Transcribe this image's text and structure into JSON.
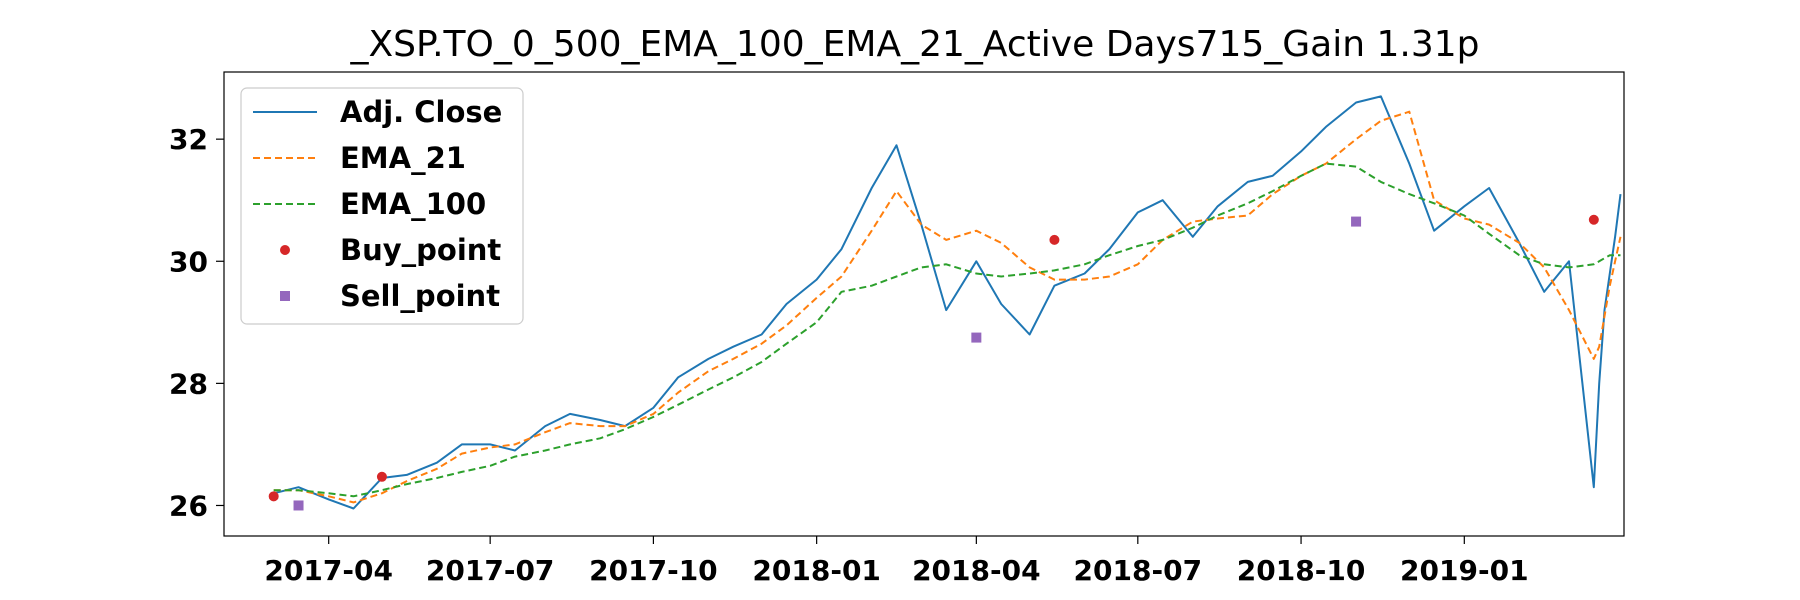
{
  "chart_data": {
    "type": "line",
    "title": "_XSP.TO_0_500_EMA_100_EMA_21_Active Days715_Gain   1.31p",
    "xlabel": "",
    "ylabel": "",
    "x_range": [
      "2017-02-01",
      "2019-04-01"
    ],
    "ylim": [
      25.5,
      33.1
    ],
    "grid": false,
    "legend_position": "top-left",
    "x_ticks": [
      "2017-04",
      "2017-07",
      "2017-10",
      "2018-01",
      "2018-04",
      "2018-07",
      "2018-10",
      "2019-01"
    ],
    "y_ticks": [
      26,
      28,
      30,
      32
    ],
    "x": [
      "2017-03-01",
      "2017-03-15",
      "2017-04-01",
      "2017-04-15",
      "2017-05-01",
      "2017-05-15",
      "2017-06-01",
      "2017-06-15",
      "2017-07-01",
      "2017-07-15",
      "2017-08-01",
      "2017-08-15",
      "2017-09-01",
      "2017-09-15",
      "2017-10-01",
      "2017-10-15",
      "2017-11-01",
      "2017-11-15",
      "2017-12-01",
      "2017-12-15",
      "2018-01-01",
      "2018-01-15",
      "2018-02-01",
      "2018-02-15",
      "2018-03-01",
      "2018-03-15",
      "2018-04-01",
      "2018-04-15",
      "2018-05-01",
      "2018-05-15",
      "2018-06-01",
      "2018-06-15",
      "2018-07-01",
      "2018-07-15",
      "2018-08-01",
      "2018-08-15",
      "2018-09-01",
      "2018-09-15",
      "2018-10-01",
      "2018-10-15",
      "2018-11-01",
      "2018-11-15",
      "2018-12-01",
      "2018-12-15",
      "2019-01-01",
      "2019-01-15",
      "2019-02-01",
      "2019-02-15",
      "2019-03-01",
      "2019-03-15"
    ],
    "series": [
      {
        "name": "Adj. Close",
        "color": "#1f77b4",
        "style": "solid",
        "values": [
          26.2,
          26.3,
          26.1,
          25.95,
          26.45,
          26.5,
          26.7,
          27.0,
          27.0,
          26.9,
          27.3,
          27.5,
          27.4,
          27.3,
          27.6,
          28.1,
          28.4,
          28.6,
          28.8,
          29.3,
          29.7,
          30.2,
          31.2,
          31.9,
          30.6,
          29.2,
          30.0,
          29.3,
          28.8,
          29.6,
          29.8,
          30.2,
          30.8,
          31.0,
          30.4,
          30.9,
          31.3,
          31.4,
          31.8,
          32.2,
          32.6,
          32.7,
          31.6,
          30.5,
          30.9,
          31.2,
          30.3,
          29.5,
          30.0,
          26.3
        ],
        "values_tail": [
          28.0,
          29.2,
          29.8,
          30.4,
          31.1
        ]
      },
      {
        "name": "EMA_21",
        "color": "#ff7f0e",
        "style": "dashed",
        "values": [
          26.25,
          26.25,
          26.15,
          26.05,
          26.2,
          26.4,
          26.6,
          26.85,
          26.95,
          27.0,
          27.2,
          27.35,
          27.3,
          27.3,
          27.5,
          27.85,
          28.2,
          28.4,
          28.65,
          28.95,
          29.4,
          29.75,
          30.5,
          31.15,
          30.6,
          30.35,
          30.5,
          30.3,
          29.9,
          29.7,
          29.7,
          29.75,
          29.95,
          30.35,
          30.65,
          30.7,
          30.75,
          31.1,
          31.4,
          31.6,
          32.0,
          32.3,
          32.45,
          31.0,
          30.7,
          30.6,
          30.3,
          29.9,
          29.2,
          28.4
        ],
        "values_tail": [
          28.6,
          29.1,
          29.6,
          30.0,
          30.4
        ]
      },
      {
        "name": "EMA_100",
        "color": "#2ca02c",
        "style": "dashed",
        "values": [
          26.25,
          26.25,
          26.2,
          26.15,
          26.25,
          26.35,
          26.45,
          26.55,
          26.65,
          26.8,
          26.9,
          27.0,
          27.1,
          27.25,
          27.45,
          27.65,
          27.9,
          28.1,
          28.35,
          28.65,
          29.0,
          29.5,
          29.6,
          29.75,
          29.9,
          29.95,
          29.8,
          29.75,
          29.8,
          29.85,
          29.95,
          30.1,
          30.25,
          30.35,
          30.55,
          30.75,
          30.95,
          31.15,
          31.4,
          31.6,
          31.55,
          31.3,
          31.1,
          30.95,
          30.75,
          30.45,
          30.1,
          29.95,
          29.9,
          29.95
        ],
        "values_tail": [
          30.0,
          30.05,
          30.1,
          30.1,
          30.1
        ]
      },
      {
        "name": "Buy_point",
        "color": "#d62728",
        "marker": "circle",
        "points": [
          {
            "x": "2017-03-01",
            "y": 26.15
          },
          {
            "x": "2017-05-01",
            "y": 26.47
          },
          {
            "x": "2018-05-15",
            "y": 30.35
          },
          {
            "x": "2019-03-15",
            "y": 30.68
          }
        ]
      },
      {
        "name": "Sell_point",
        "color": "#9467bd",
        "marker": "square",
        "points": [
          {
            "x": "2017-03-15",
            "y": 26.0
          },
          {
            "x": "2018-04-01",
            "y": 28.75
          },
          {
            "x": "2018-11-01",
            "y": 30.65
          }
        ]
      }
    ]
  }
}
